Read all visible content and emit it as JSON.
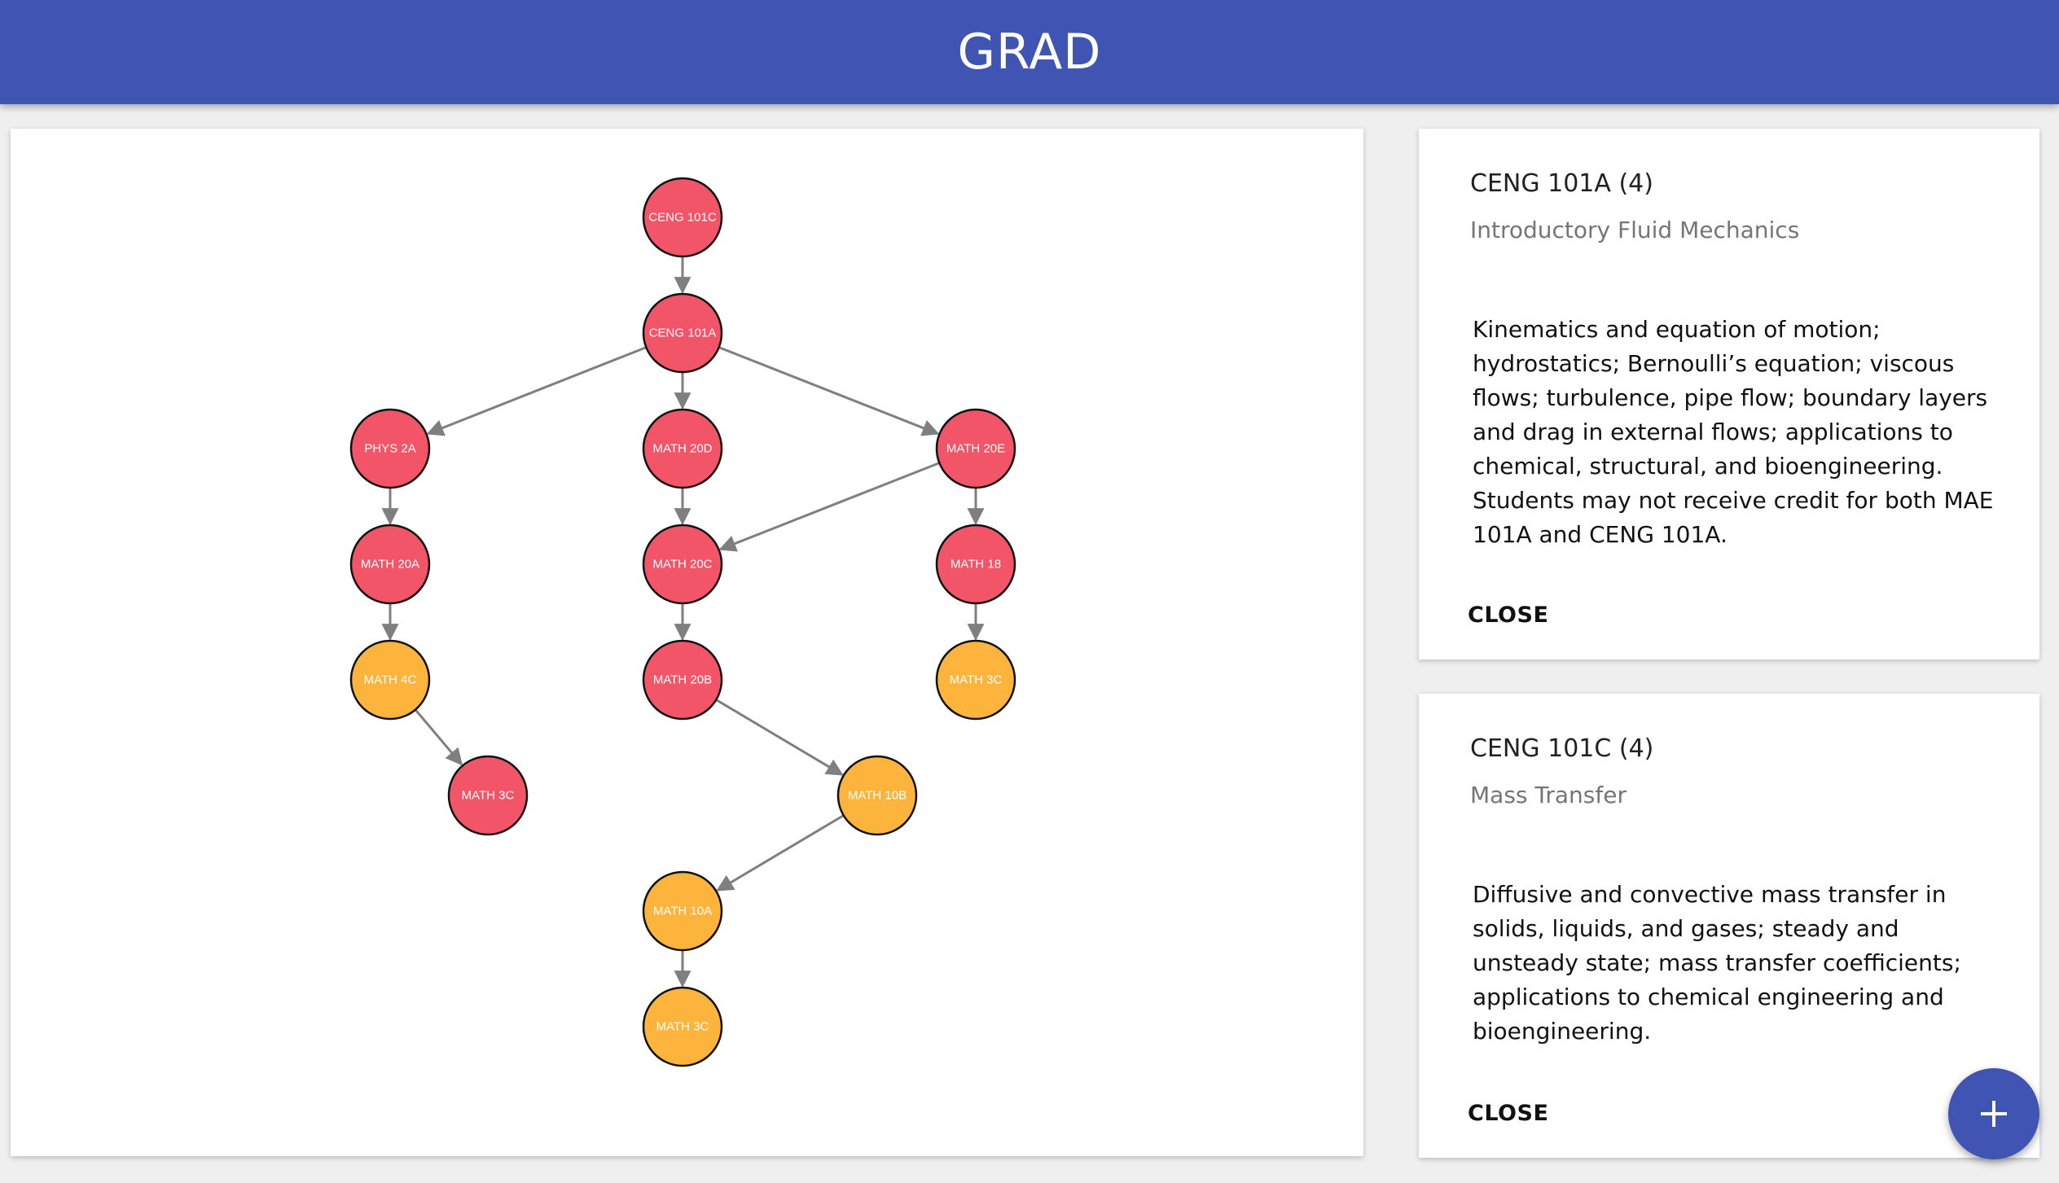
{
  "app": {
    "title": "GRAD"
  },
  "colors": {
    "primary": "#3f54b3",
    "node_required": "#f25567",
    "node_satisfied": "#fdb43d",
    "edge": "#7f7f7f"
  },
  "graph": {
    "nodes": [
      {
        "id": "ceng101c",
        "label": "CENG 101C",
        "status": "required"
      },
      {
        "id": "ceng101a",
        "label": "CENG 101A",
        "status": "required"
      },
      {
        "id": "phys2a",
        "label": "PHYS 2A",
        "status": "required"
      },
      {
        "id": "math20d",
        "label": "MATH 20D",
        "status": "required"
      },
      {
        "id": "math20e",
        "label": "MATH 20E",
        "status": "required"
      },
      {
        "id": "math20a",
        "label": "MATH 20A",
        "status": "required"
      },
      {
        "id": "math20c",
        "label": "MATH 20C",
        "status": "required"
      },
      {
        "id": "math18",
        "label": "MATH 18",
        "status": "required"
      },
      {
        "id": "math4c",
        "label": "MATH 4C",
        "status": "satisfied"
      },
      {
        "id": "math20b",
        "label": "MATH 20B",
        "status": "required"
      },
      {
        "id": "math3c_right",
        "label": "MATH 3C",
        "status": "satisfied"
      },
      {
        "id": "math3c_left",
        "label": "MATH 3C",
        "status": "required"
      },
      {
        "id": "math10b",
        "label": "MATH 10B",
        "status": "satisfied"
      },
      {
        "id": "math10a",
        "label": "MATH 10A",
        "status": "satisfied"
      },
      {
        "id": "math3c_bottom",
        "label": "MATH 3C",
        "status": "satisfied"
      }
    ],
    "edges": [
      [
        "ceng101c",
        "ceng101a"
      ],
      [
        "ceng101a",
        "phys2a"
      ],
      [
        "ceng101a",
        "math20d"
      ],
      [
        "ceng101a",
        "math20e"
      ],
      [
        "phys2a",
        "math20a"
      ],
      [
        "math20d",
        "math20c"
      ],
      [
        "math20e",
        "math20c"
      ],
      [
        "math20e",
        "math18"
      ],
      [
        "math20a",
        "math4c"
      ],
      [
        "math20c",
        "math20b"
      ],
      [
        "math18",
        "math3c_right"
      ],
      [
        "math4c",
        "math3c_left"
      ],
      [
        "math20b",
        "math10b"
      ],
      [
        "math10b",
        "math10a"
      ],
      [
        "math10a",
        "math3c_bottom"
      ]
    ]
  },
  "cards": [
    {
      "code": "CENG 101A (4)",
      "name": "Introductory Fluid Mechanics",
      "description": "Kinematics and equation of motion; hydrostatics; Bernoulli’s equation; viscous flows; turbulence, pipe flow; boundary layers and drag in external flows; applications to chemical, structural, and bioengineering. Students may not receive credit for both MAE 101A and CENG 101A.",
      "close_label": "CLOSE"
    },
    {
      "code": "CENG 101C (4)",
      "name": "Mass Transfer",
      "description": "Diffusive and convective mass transfer in solids, liquids, and gases; steady and unsteady state; mass transfer coefficients; applications to chemical engineering and bioengineering.",
      "close_label": "CLOSE"
    }
  ],
  "fab": {
    "icon": "plus-icon"
  }
}
